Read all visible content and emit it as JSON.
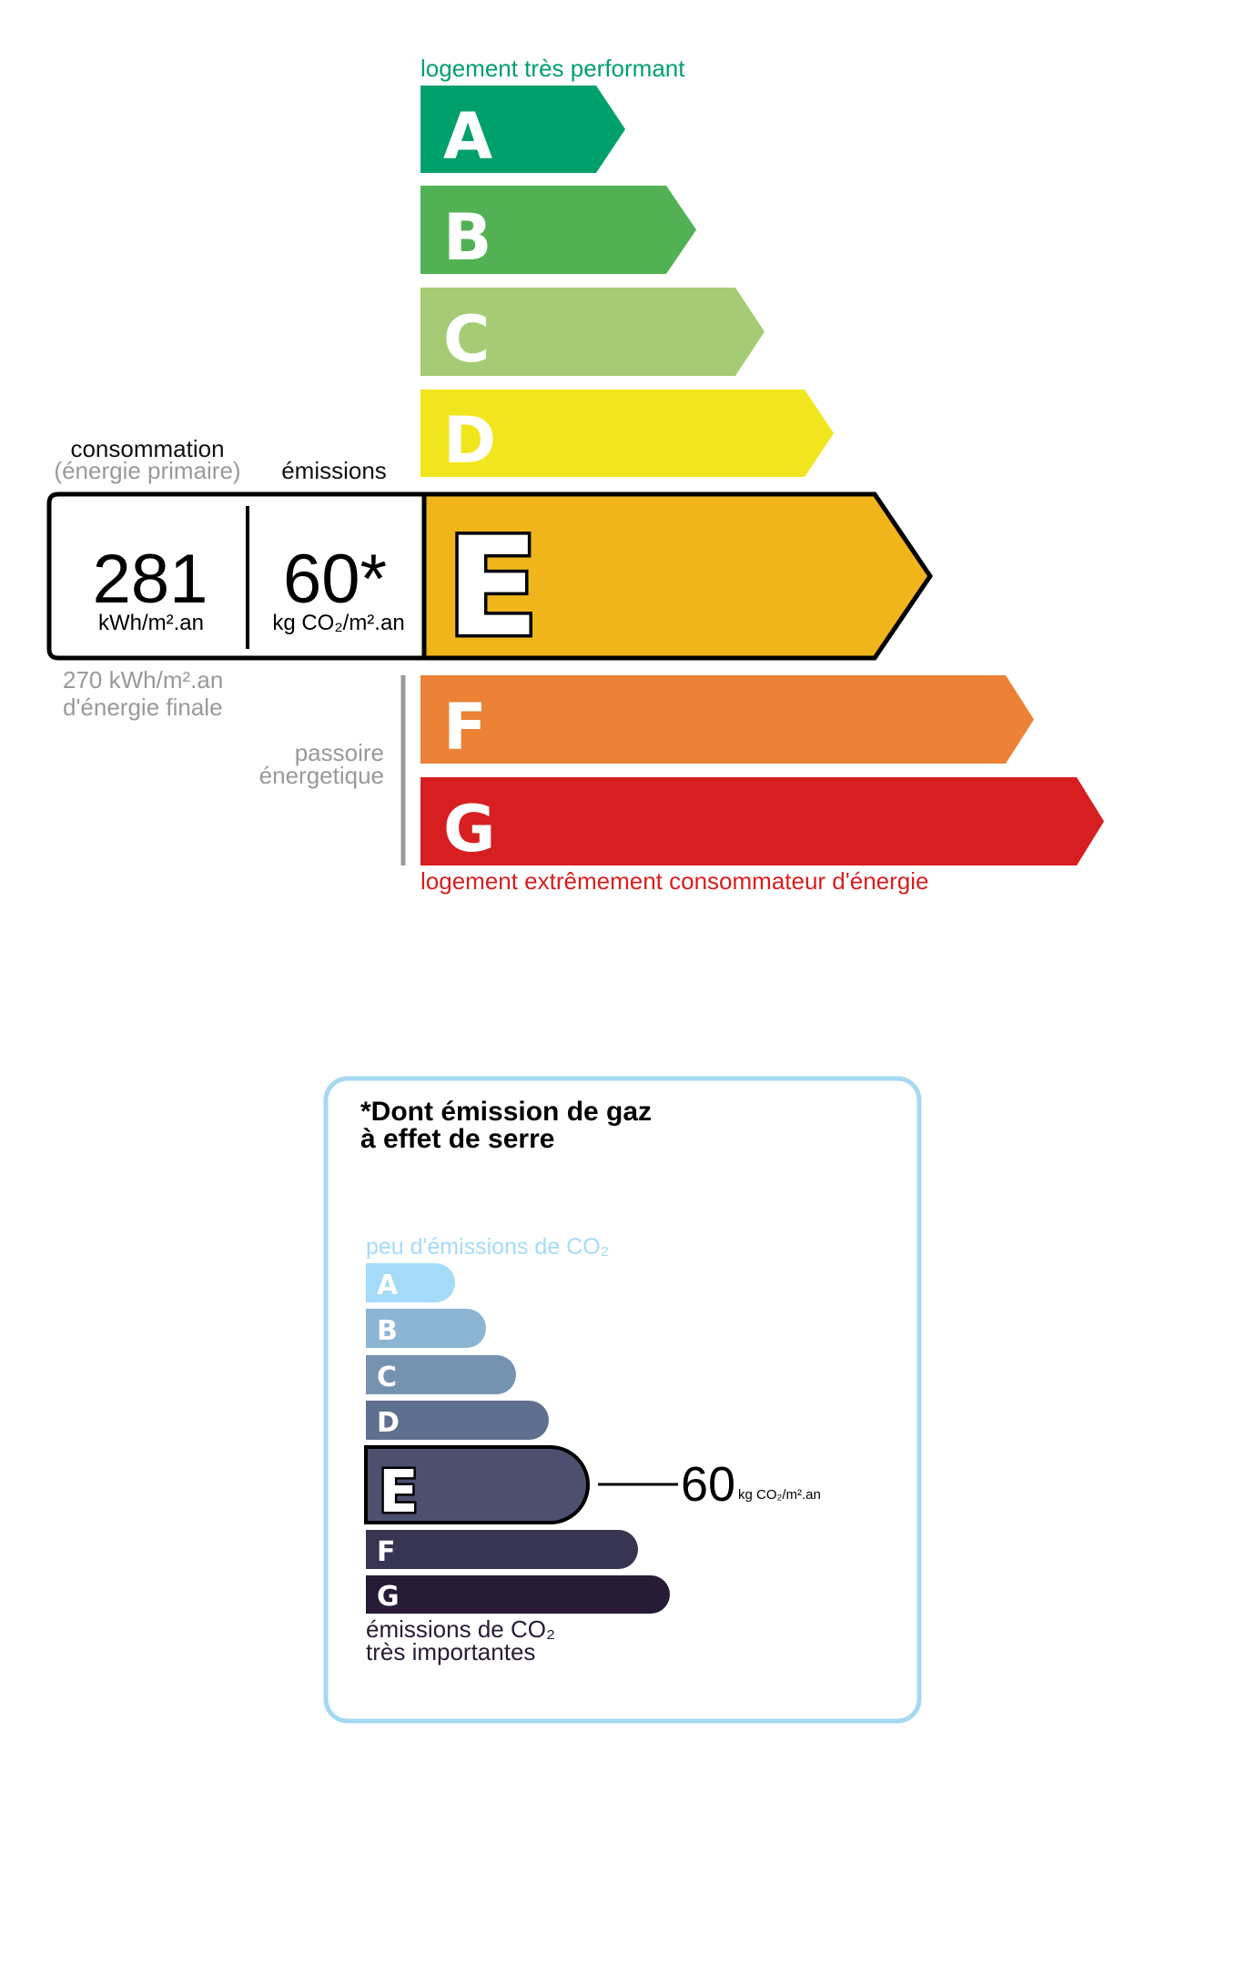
{
  "energy": {
    "top_label": "logement très performant",
    "bottom_label": "logement extrêmement consommateur d'énergie",
    "classes": [
      "A",
      "B",
      "C",
      "D",
      "E",
      "F",
      "G"
    ],
    "colors": [
      "#00a06d",
      "#52b153",
      "#a5cc74",
      "#f1e51d",
      "#efb51a",
      "#eb8235",
      "#d71e20"
    ],
    "current_class": "E",
    "consumption_title": "consommation",
    "consumption_subtitle": "(énergie primaire)",
    "emissions_title": "émissions",
    "consumption_value": "281",
    "consumption_unit": "kWh/m².an",
    "emissions_value": "60*",
    "emissions_unit": "kg CO₂/m².an",
    "final_energy_line1": "270 kWh/m².an",
    "final_energy_line2": "d'énergie finale",
    "passoire_line1": "passoire",
    "passoire_line2": "énergetique"
  },
  "ges": {
    "title_line1": "*Dont émission de gaz",
    "title_line2": "à effet de serre",
    "top_label": "peu d'émissions de CO₂",
    "bottom_label_line1": "émissions de CO₂",
    "bottom_label_line2": "très importantes",
    "classes": [
      "A",
      "B",
      "C",
      "D",
      "E",
      "F",
      "G"
    ],
    "colors": [
      "#a4dbf8",
      "#8cb4d3",
      "#7692b1",
      "#5f6f8f",
      "#4c4f6e",
      "#373551",
      "#281b35"
    ],
    "current_class": "E",
    "value": "60",
    "unit": "kg CO₂/m².an",
    "border_color": "#a5d8f3"
  }
}
